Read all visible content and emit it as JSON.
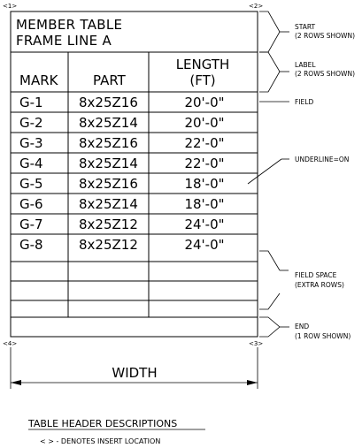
{
  "markers": {
    "m1": "<1>",
    "m2": "<2>",
    "m3": "<3>",
    "m4": "<4>"
  },
  "table": {
    "title_line1": "MEMBER TABLE",
    "title_line2": "FRAME LINE A",
    "headers": {
      "mark": "MARK",
      "part": "PART",
      "length_line1": "LENGTH",
      "length_line2": "(FT)"
    },
    "rows": [
      {
        "mark": "G-1",
        "part": "8x25Z16",
        "length": "20'-0\""
      },
      {
        "mark": "G-2",
        "part": "8x25Z14",
        "length": "20'-0\""
      },
      {
        "mark": "G-3",
        "part": "8x25Z16",
        "length": "22'-0\""
      },
      {
        "mark": "G-4",
        "part": "8x25Z14",
        "length": "22'-0\""
      },
      {
        "mark": "G-5",
        "part": "8x25Z16",
        "length": "18'-0\""
      },
      {
        "mark": "G-6",
        "part": "8x25Z14",
        "length": "18'-0\""
      },
      {
        "mark": "G-7",
        "part": "8x25Z12",
        "length": "24'-0\""
      },
      {
        "mark": "G-8",
        "part": "8x25Z12",
        "length": "24'-0\""
      }
    ]
  },
  "annotations": {
    "start_line1": "START",
    "start_line2": "(2 ROWS SHOWN)",
    "label_line1": "LABEL",
    "label_line2": "(2 ROWS SHOWN)",
    "field": "FIELD",
    "underline": "UNDERLINE=ON",
    "field_space_line1": "FIELD SPACE",
    "field_space_line2": "(EXTRA ROWS)",
    "end_line1": "END",
    "end_line2": "(1 ROW SHOWN)"
  },
  "width_label": "WIDTH",
  "footer": {
    "heading": "TABLE HEADER DESCRIPTIONS",
    "note": "< > - DENOTES INSERT LOCATION"
  }
}
